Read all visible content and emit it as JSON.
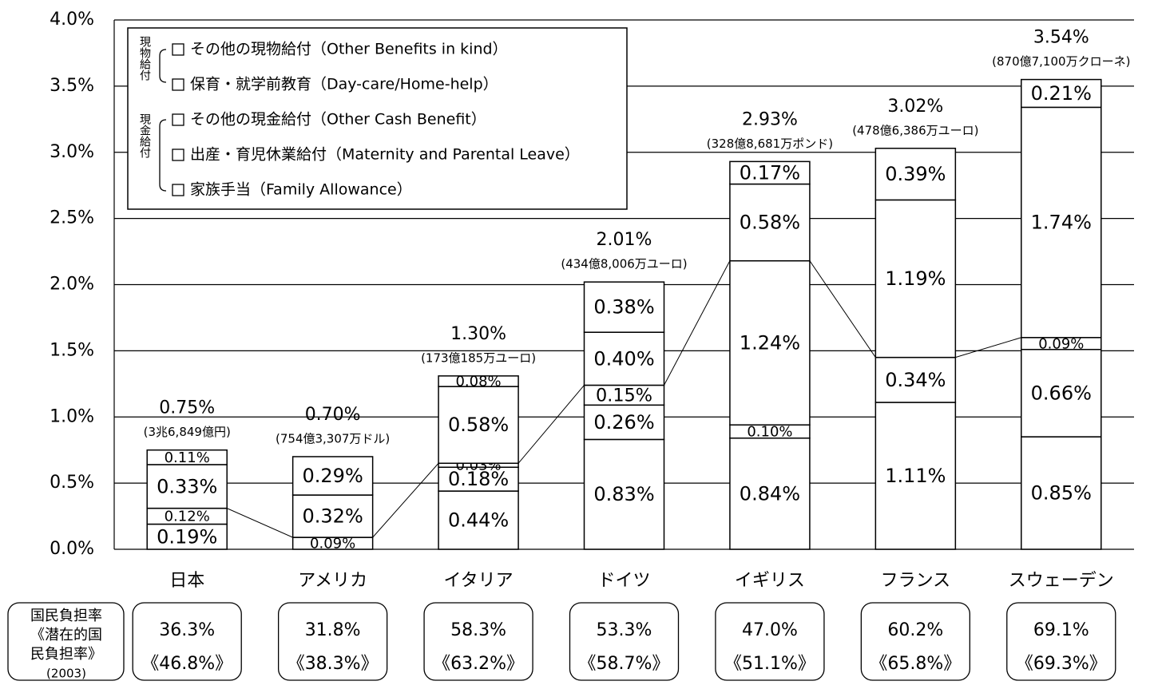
{
  "chart_data": {
    "type": "stacked_bar",
    "categories": [
      "日本",
      "アメリカ",
      "イタリア",
      "ドイツ",
      "イギリス",
      "フランス",
      "スウェーデン"
    ],
    "series": [
      {
        "name": "家族手当（Family Allowance）",
        "color": "#ffffff",
        "values": [
          0.19,
          null,
          0.44,
          0.83,
          0.84,
          1.11,
          0.85
        ],
        "value_labels": [
          "0.19%",
          null,
          "0.44%",
          "0.83%",
          "0.84%",
          "1.11%",
          "0.85%"
        ]
      },
      {
        "name": "出産・育児休業給付（Maternity and Parental Leave）",
        "color": "#ffffff",
        "values": [
          0.12,
          null,
          0.18,
          0.26,
          0.1,
          0.34,
          0.66
        ],
        "value_labels": [
          "0.12%",
          null,
          "0.18%",
          "0.26%",
          "0.10%",
          "0.34%",
          "0.66%"
        ]
      },
      {
        "name": "その他の現金給付（Other Cash Benefit）",
        "color": "#ffffff",
        "values": [
          null,
          0.09,
          0.03,
          0.15,
          1.24,
          null,
          0.09
        ],
        "value_labels": [
          null,
          "0.09%",
          "0.03%",
          "0.15%",
          "1.24%",
          null,
          "0.09%"
        ]
      },
      {
        "name": "保育・就学前教育（Day-care/Home-help）",
        "color": "#ffffff",
        "values": [
          0.33,
          0.32,
          0.58,
          0.4,
          0.58,
          1.19,
          1.74
        ],
        "value_labels": [
          "0.33%",
          "0.32%",
          "0.58%",
          "0.40%",
          "0.58%",
          "1.19%",
          "1.74%"
        ]
      },
      {
        "name": "その他の現物給付（Other Benefits in kind）",
        "color": "#ffffff",
        "values": [
          0.11,
          0.29,
          0.08,
          0.38,
          0.17,
          0.39,
          0.21
        ],
        "value_labels": [
          "0.11%",
          "0.29%",
          "0.08%",
          "0.38%",
          "0.17%",
          "0.39%",
          "0.21%"
        ]
      }
    ],
    "totals": [
      0.75,
      0.7,
      1.3,
      2.01,
      2.93,
      3.02,
      3.54
    ],
    "total_labels": [
      "0.75%",
      "0.70%",
      "1.30%",
      "2.01%",
      "2.93%",
      "3.02%",
      "3.54%"
    ],
    "amounts": [
      "(3兆6,849億円)",
      "(754億3,307万ドル)",
      "(173億185万ユーロ)",
      "(434億8,006万ユーロ)",
      "(328億8,681万ポンド)",
      "(478億6,386万ユーロ)",
      "(870億7,100万クローネ)"
    ],
    "legend_groups": [
      "現物給付",
      "現金給付"
    ],
    "burden_label": [
      "国民負担率",
      "《潜在的国",
      "民負担率》",
      "(2003)"
    ],
    "burden": [
      "36.3%",
      "31.8%",
      "58.3%",
      "53.3%",
      "47.0%",
      "60.2%",
      "69.1%"
    ],
    "potential_burden": [
      "《46.8%》",
      "《38.3%》",
      "《63.2%》",
      "《58.7%》",
      "《51.1%》",
      "《65.8%》",
      "《69.3%》"
    ],
    "ylim": [
      0,
      4
    ],
    "yticks": [
      {
        "value": 0,
        "label": "0.0%"
      },
      {
        "value": 0.5,
        "label": "0.5%"
      },
      {
        "value": 1,
        "label": "1.0%"
      },
      {
        "value": 1.5,
        "label": "1.5%"
      },
      {
        "value": 2,
        "label": "2.0%"
      },
      {
        "value": 2.5,
        "label": "2.5%"
      },
      {
        "value": 3,
        "label": "3.0%"
      },
      {
        "value": 3.5,
        "label": "3.5%"
      },
      {
        "value": 4,
        "label": "4.0%"
      }
    ],
    "grid": true
  }
}
